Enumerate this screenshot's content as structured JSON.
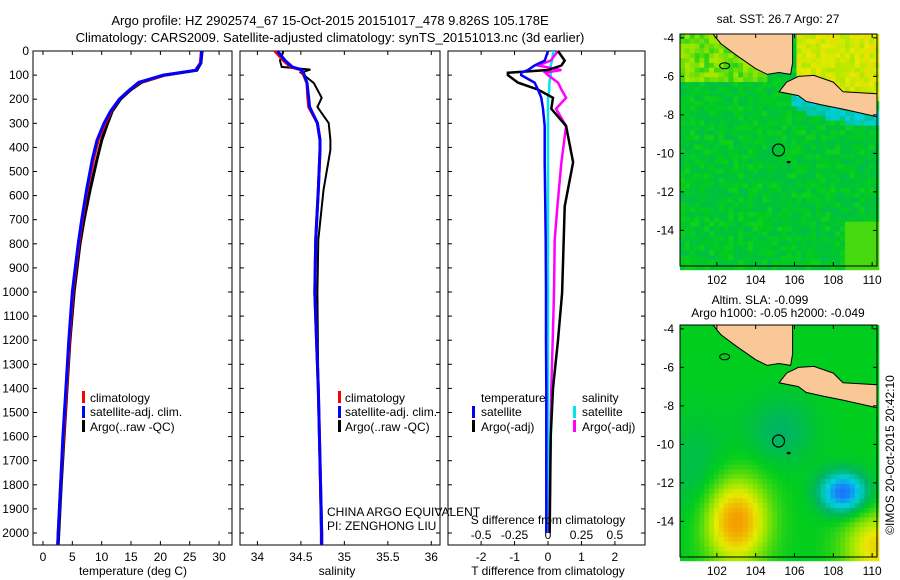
{
  "figure": {
    "title_line1": "Argo profile: HZ 2902574_67 15-Oct-2015 20151017_478 9.826S 105.178E",
    "title_line2": "Climatology: CARS2009. Satellite-adjusted climatology: synTS_20151013.nc (3d earlier)",
    "credit": "CHINA ARGO EQUIVALENT",
    "pi": "PI: ZENGHONG LIU",
    "copyright": "©IMOS 20-Oct-2015 20:42:10"
  },
  "colors": {
    "climatology": "#ff0000",
    "satellite": "#0000ff",
    "argo": "#000000",
    "sal_satellite": "#00e5ee",
    "sal_argo": "#ff00ff",
    "land": "#f9c896"
  },
  "chart_data": [
    {
      "type": "line",
      "name": "temperature-profile",
      "xlabel": "temperature (deg C)",
      "ylabel": "",
      "xlim": [
        -1.7,
        32.2
      ],
      "ylim": [
        2050,
        0
      ],
      "xticks": [
        0,
        5,
        10,
        15,
        20,
        25,
        30
      ],
      "xtick_labels": [
        "0",
        "5",
        "10",
        "15",
        "20",
        "25",
        "30"
      ],
      "yticks": [
        0,
        100,
        200,
        300,
        400,
        500,
        600,
        700,
        800,
        900,
        1000,
        1100,
        1200,
        1300,
        1400,
        1500,
        1600,
        1700,
        1800,
        1900,
        2000
      ],
      "ytick_labels": [
        "0",
        "100",
        "200",
        "300",
        "400",
        "500",
        "600",
        "700",
        "800",
        "900",
        "1000",
        "1100",
        "1200",
        "1300",
        "1400",
        "1500",
        "1600",
        "1700",
        "1800",
        "1900",
        "2000"
      ],
      "legend": [
        "climatology",
        "satellite-adj. clim.",
        "Argo(..raw -QC)"
      ],
      "depth": [
        0,
        50,
        80,
        100,
        130,
        160,
        200,
        250,
        300,
        370,
        450,
        580,
        700,
        800,
        1000,
        1200,
        1400,
        1600,
        1800,
        2000,
        2050
      ],
      "series": [
        {
          "name": "climatology",
          "values": [
            27,
            26.8,
            26,
            20.8,
            16.5,
            14.8,
            13,
            11.6,
            10.6,
            9.4,
            8.6,
            7.5,
            6.7,
            6.1,
            5.1,
            4.5,
            4.0,
            3.5,
            3.0,
            2.6,
            2.5
          ]
        },
        {
          "name": "satellite-adj. clim.",
          "values": [
            27,
            26.9,
            26,
            20.5,
            16.3,
            14.8,
            13,
            11.5,
            10.4,
            9.2,
            8.4,
            7.4,
            6.6,
            6.0,
            5.0,
            4.4,
            3.9,
            3.4,
            3.0,
            2.6,
            2.5
          ]
        },
        {
          "name": "Argo(..raw -QC)",
          "values": [
            27.1,
            26.9,
            26.2,
            20.8,
            16.8,
            15.0,
            13.2,
            11.8,
            11.0,
            10.0,
            9.2,
            8.0,
            7.0,
            6.3,
            5.3,
            4.6,
            4.1,
            3.6,
            3.1,
            2.7,
            2.6
          ]
        }
      ]
    },
    {
      "type": "line",
      "name": "salinity-profile",
      "xlabel": "salinity",
      "xlim": [
        33.8,
        36.1
      ],
      "ylim": [
        2050,
        0
      ],
      "xticks": [
        34,
        34.5,
        35,
        35.5,
        36
      ],
      "xtick_labels": [
        "34",
        "34.5",
        "35",
        "35.5",
        "36"
      ],
      "legend": [
        "climatology",
        "satellite-adj. clim.",
        "Argo(..raw -QC)"
      ],
      "depth": [
        0,
        40,
        66,
        77,
        90,
        133,
        194,
        232,
        299,
        369,
        410,
        577,
        784,
        1004,
        1400,
        2000,
        2050
      ],
      "series": [
        {
          "name": "climatology",
          "values": [
            34.2,
            34.3,
            34.38,
            34.49,
            34.52,
            34.57,
            34.58,
            34.59,
            34.69,
            34.72,
            34.72,
            34.7,
            34.67,
            34.66,
            34.7,
            34.74,
            34.74
          ]
        },
        {
          "name": "satellite-adj. clim.",
          "values": [
            34.23,
            34.32,
            34.4,
            34.5,
            34.53,
            34.57,
            34.59,
            34.6,
            34.69,
            34.72,
            34.72,
            34.7,
            34.67,
            34.66,
            34.7,
            34.74,
            34.74
          ]
        },
        {
          "name": "Argo(..raw -QC)",
          "values": [
            34.3,
            34.26,
            34.28,
            34.61,
            34.5,
            34.65,
            34.74,
            34.69,
            34.82,
            34.84,
            34.84,
            34.76,
            34.7,
            34.69,
            34.7,
            34.73,
            34.73
          ]
        }
      ]
    },
    {
      "type": "line",
      "name": "difference-profile",
      "xlabel": "T difference from climatology",
      "xlabel2": "S difference from climatology",
      "xlim": [
        -2.99,
        2.9
      ],
      "xticks": [
        -2,
        -1,
        0,
        1,
        2
      ],
      "xtick_labels": [
        "-2",
        "-1",
        "0",
        "1",
        "2"
      ],
      "xticks2": [
        -0.5,
        -0.25,
        0,
        0.25,
        0.5
      ],
      "xtick_labels2": [
        "-0.5",
        "-0.25",
        "0",
        "0.25",
        "0.5"
      ],
      "legend_headers": [
        "temperature",
        "salinity"
      ],
      "legend": [
        "satellite",
        "Argo(-adj)",
        "satellite",
        "Argo(-adj)"
      ],
      "depth": [
        0,
        40,
        60,
        79,
        90,
        100,
        131,
        160,
        194,
        240,
        311,
        462,
        645,
        784,
        1004,
        1200,
        1400,
        1600,
        2000
      ],
      "series": [
        {
          "name": "T satellite",
          "axis": "T",
          "values": [
            0,
            -0.1,
            -0.4,
            -0.6,
            -0.8,
            -0.8,
            -0.4,
            -0.3,
            -0.2,
            -0.15,
            -0.1,
            -0.1,
            -0.08,
            -0.07,
            -0.06,
            -0.06,
            -0.05,
            -0.05,
            -0.05
          ]
        },
        {
          "name": "T Argo(-adj)",
          "axis": "T",
          "values": [
            0.3,
            0.5,
            0.4,
            0,
            -1.2,
            -1.2,
            -0.9,
            -0.3,
            0.15,
            0.1,
            0.54,
            0.75,
            0.5,
            0.47,
            0.42,
            0.3,
            0.15,
            0.08,
            0.05
          ]
        },
        {
          "name": "S satellite",
          "axis": "S",
          "values": [
            0.04,
            0.03,
            0.02,
            0.02,
            0.02,
            0.02,
            0.01,
            0.01,
            0.0,
            0.0,
            0.0,
            0.0,
            0.0,
            0.0,
            0.0,
            0.0,
            0.0,
            0.0,
            0.0
          ]
        },
        {
          "name": "S Argo(-adj)",
          "axis": "S",
          "values": [
            0.075,
            0.02,
            -0.075,
            0.1,
            -0.02,
            0.0,
            0.075,
            0.1,
            0.135,
            0.06,
            0.135,
            0.1,
            0.07,
            0.05,
            0.045,
            0.035,
            0.025,
            0.02,
            0.01
          ]
        }
      ]
    },
    {
      "type": "heatmap",
      "name": "sst-map",
      "title": "sat. SST: 26.7 Argo: 27",
      "xlim": [
        100.1,
        110.25
      ],
      "ylim": [
        -15.85,
        -3.8
      ],
      "xticks": [
        102,
        104,
        106,
        108,
        110
      ],
      "xtick_labels": [
        "102",
        "104",
        "106",
        "108",
        "110"
      ],
      "yticks": [
        -4,
        -6,
        -8,
        -10,
        -12,
        -14
      ],
      "ytick_labels": [
        "-4",
        "-6",
        "-8",
        "-10",
        "-12",
        "-14"
      ],
      "float_position": [
        105.178,
        -9.826
      ]
    },
    {
      "type": "heatmap",
      "name": "sla-map",
      "title": "Altim. SLA: -0.099",
      "subtitle": "Argo h1000: -0.05 h2000: -0.049",
      "xlim": [
        100.1,
        110.25
      ],
      "ylim": [
        -15.85,
        -3.8
      ],
      "xticks": [
        102,
        104,
        106,
        108,
        110
      ],
      "xtick_labels": [
        "102",
        "104",
        "106",
        "108",
        "110"
      ],
      "yticks": [
        -4,
        -6,
        -8,
        -10,
        -12,
        -14
      ],
      "ytick_labels": [
        "-4",
        "-6",
        "-8",
        "-10",
        "-12",
        "-14"
      ],
      "float_position": [
        105.178,
        -9.826
      ]
    }
  ]
}
